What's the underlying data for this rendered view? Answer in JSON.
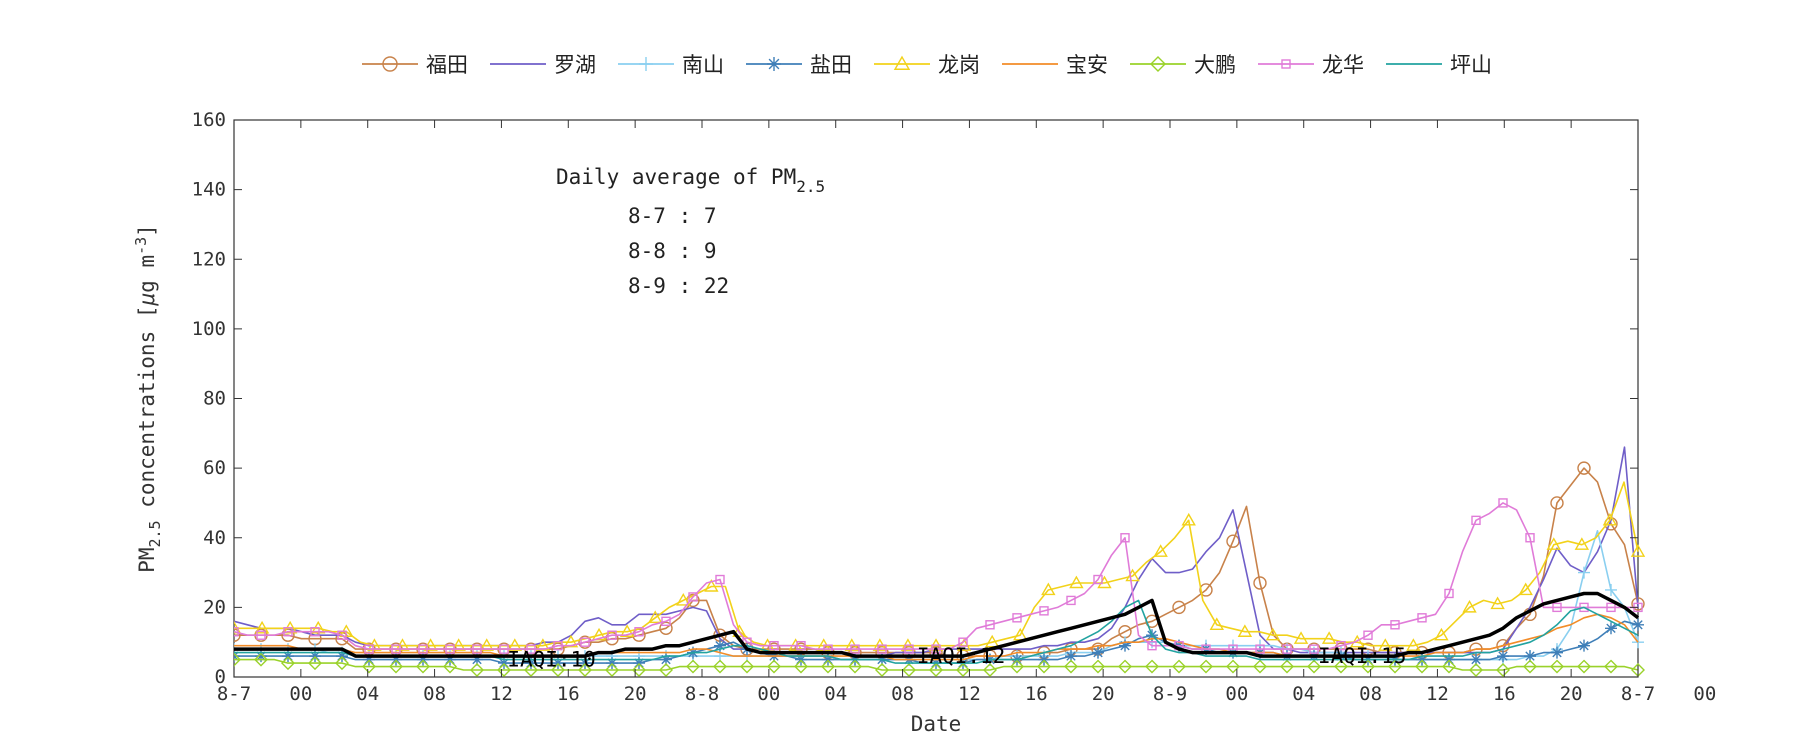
{
  "chart_data": {
    "type": "line",
    "xlabel": "Date",
    "ylabel_main": "PM",
    "ylabel_sub": "2.5",
    "ylabel_rest": " concentrations [",
    "ylabel_mu": "μ",
    "ylabel_unit": "g m",
    "ylabel_exp": "-3",
    "ylabel_close": "]",
    "ylim": [
      0,
      160
    ],
    "yticks": [
      0,
      20,
      40,
      60,
      80,
      100,
      120,
      140,
      160
    ],
    "xlim": [
      0,
      84
    ],
    "grid": false,
    "legend_position": "top",
    "xticks": [
      {
        "x": 0,
        "label": "8-7"
      },
      {
        "x": 4,
        "label": "00"
      },
      {
        "x": 8,
        "label": "04"
      },
      {
        "x": 12,
        "label": "08"
      },
      {
        "x": 16,
        "label": "12"
      },
      {
        "x": 20,
        "label": "16"
      },
      {
        "x": 24,
        "label": "20"
      },
      {
        "x": 28,
        "label": "8-8"
      },
      {
        "x": 32,
        "label": "00"
      },
      {
        "x": 36,
        "label": "04"
      },
      {
        "x": 40,
        "label": "08"
      },
      {
        "x": 44,
        "label": "12"
      },
      {
        "x": 48,
        "label": "16"
      },
      {
        "x": 52,
        "label": "20"
      },
      {
        "x": 56,
        "label": "8-9"
      },
      {
        "x": 60,
        "label": "00"
      },
      {
        "x": 64,
        "label": "04"
      },
      {
        "x": 68,
        "label": "08"
      },
      {
        "x": 72,
        "label": "12"
      },
      {
        "x": 76,
        "label": "16"
      },
      {
        "x": 80,
        "label": "20"
      },
      {
        "x": 84,
        "label": "8-7"
      },
      {
        "x": 88,
        "label": "00"
      }
    ],
    "annotation": {
      "title_main": "Daily average of PM",
      "title_sub": "2.5",
      "lines": [
        "8-7 : 7",
        "8-8 : 9",
        "8-9 : 22"
      ]
    },
    "iaqi_labels": [
      {
        "x": 19,
        "y": 5,
        "text": "IAQI:10"
      },
      {
        "x": 43.5,
        "y": 6,
        "text": "IAQI:12"
      },
      {
        "x": 67.5,
        "y": 6,
        "text": "IAQI:15"
      }
    ],
    "series": [
      {
        "name": "福田",
        "color": "#C8824A",
        "marker": "circle",
        "marker_every": 1,
        "x0": 0,
        "dx": 1,
        "values": [
          12,
          12,
          12,
          12,
          12,
          11,
          11,
          11,
          11,
          8,
          8,
          8,
          8,
          8,
          8,
          8,
          8,
          8,
          8,
          8,
          8,
          8,
          8,
          8,
          8,
          9,
          10,
          10,
          11,
          11,
          12,
          13,
          14,
          17,
          22,
          22,
          12,
          9,
          8,
          8,
          8,
          8,
          8,
          8,
          7,
          7,
          7,
          7,
          7,
          7,
          7,
          7,
          7,
          6,
          6,
          6,
          6,
          6,
          6,
          6,
          7,
          7,
          8,
          8,
          8,
          11,
          13,
          15,
          16,
          18,
          20,
          22,
          25,
          30,
          39,
          49,
          27,
          12,
          8,
          8,
          8,
          8,
          8,
          8,
          8,
          7,
          7,
          7,
          7,
          7,
          7,
          7,
          8,
          8,
          9,
          14,
          18,
          29,
          50,
          55,
          60,
          56,
          44,
          38,
          21
        ]
      },
      {
        "name": "罗湖",
        "color": "#6F5EC8",
        "marker": "none",
        "x0": 0,
        "dx": 1,
        "values": [
          16,
          15,
          14,
          14,
          14,
          13,
          12,
          12,
          12,
          10,
          9,
          9,
          9,
          9,
          9,
          9,
          9,
          9,
          9,
          9,
          9,
          9,
          9,
          10,
          10,
          12,
          16,
          17,
          15,
          15,
          18,
          18,
          18,
          19,
          20,
          19,
          11,
          8,
          8,
          7,
          7,
          7,
          7,
          7,
          7,
          7,
          6,
          6,
          6,
          7,
          7,
          7,
          8,
          8,
          8,
          8,
          8,
          8,
          8,
          8,
          9,
          9,
          10,
          10,
          11,
          14,
          20,
          28,
          34,
          30,
          30,
          31,
          36,
          40,
          48,
          30,
          12,
          8,
          8,
          7,
          7,
          7,
          7,
          7,
          7,
          7,
          7,
          7,
          7,
          7,
          7,
          7,
          7,
          7,
          8,
          14,
          20,
          28,
          37,
          32,
          30,
          36,
          45,
          66,
          20
        ]
      },
      {
        "name": "南山",
        "color": "#8ACFF0",
        "marker": "plus",
        "x0": 0,
        "dx": 1,
        "values": [
          8,
          8,
          8,
          8,
          8,
          8,
          8,
          7,
          7,
          6,
          6,
          6,
          6,
          6,
          6,
          6,
          6,
          6,
          6,
          6,
          6,
          6,
          6,
          6,
          6,
          6,
          6,
          6,
          6,
          6,
          6,
          6,
          6,
          6,
          6,
          6,
          6,
          6,
          6,
          6,
          6,
          6,
          6,
          6,
          6,
          5,
          5,
          5,
          5,
          5,
          5,
          5,
          5,
          5,
          5,
          5,
          5,
          6,
          6,
          6,
          6,
          6,
          7,
          7,
          7,
          9,
          10,
          10,
          10,
          10,
          9,
          9,
          9,
          9,
          9,
          9,
          9,
          9,
          8,
          8,
          7,
          7,
          7,
          6,
          6,
          6,
          5,
          5,
          5,
          5,
          5,
          5,
          5,
          5,
          5,
          5,
          6,
          6,
          8,
          14,
          30,
          42,
          25,
          20,
          10
        ]
      },
      {
        "name": "盐田",
        "color": "#3F7FB8",
        "marker": "star",
        "x0": 0,
        "dx": 1,
        "values": [
          6,
          6,
          6,
          6,
          6,
          6,
          6,
          6,
          6,
          5,
          5,
          5,
          5,
          5,
          5,
          5,
          5,
          5,
          5,
          5,
          4,
          4,
          4,
          4,
          4,
          4,
          4,
          4,
          4,
          4,
          4,
          5,
          5,
          6,
          7,
          8,
          9,
          10,
          8,
          7,
          6,
          6,
          5,
          5,
          5,
          5,
          5,
          5,
          5,
          5,
          5,
          4,
          4,
          4,
          4,
          5,
          5,
          5,
          5,
          5,
          5,
          5,
          6,
          6,
          7,
          8,
          9,
          11,
          12,
          10,
          9,
          8,
          8,
          7,
          7,
          7,
          7,
          7,
          6,
          6,
          6,
          6,
          6,
          5,
          5,
          5,
          5,
          5,
          5,
          5,
          5,
          5,
          5,
          5,
          6,
          6,
          6,
          7,
          7,
          8,
          9,
          11,
          14,
          16,
          15
        ]
      },
      {
        "name": "龙岗",
        "color": "#F2D21A",
        "marker": "triangle",
        "x0": 0,
        "dx": 1,
        "values": [
          14,
          14,
          14,
          14,
          14,
          14,
          14,
          13,
          13,
          10,
          9,
          9,
          9,
          9,
          9,
          9,
          9,
          9,
          9,
          9,
          9,
          9,
          9,
          10,
          10,
          11,
          12,
          13,
          13,
          14,
          17,
          20,
          22,
          24,
          26,
          26,
          13,
          10,
          9,
          9,
          9,
          9,
          9,
          9,
          9,
          9,
          9,
          9,
          9,
          9,
          9,
          9,
          9,
          9,
          10,
          11,
          12,
          20,
          25,
          26,
          27,
          27,
          27,
          28,
          29,
          33,
          36,
          40,
          45,
          22,
          15,
          14,
          13,
          13,
          12,
          12,
          11,
          11,
          11,
          10,
          10,
          9,
          9,
          9,
          9,
          10,
          12,
          16,
          20,
          22,
          21,
          22,
          25,
          30,
          38,
          39,
          38,
          40,
          45,
          56,
          36
        ]
      },
      {
        "name": "宝安",
        "color": "#F28C28",
        "marker": "none",
        "x0": 0,
        "dx": 1,
        "values": [
          9,
          9,
          9,
          9,
          9,
          8,
          8,
          8,
          8,
          7,
          7,
          7,
          7,
          7,
          7,
          7,
          7,
          7,
          7,
          7,
          6,
          6,
          6,
          6,
          6,
          6,
          6,
          7,
          7,
          7,
          7,
          7,
          7,
          7,
          8,
          8,
          7,
          6,
          6,
          6,
          6,
          6,
          6,
          6,
          6,
          6,
          6,
          6,
          6,
          5,
          5,
          5,
          5,
          5,
          5,
          6,
          6,
          6,
          7,
          7,
          7,
          8,
          8,
          8,
          9,
          9,
          10,
          10,
          11,
          11,
          10,
          9,
          8,
          8,
          7,
          7,
          7,
          7,
          6,
          6,
          6,
          6,
          6,
          6,
          6,
          6,
          6,
          6,
          6,
          7,
          7,
          7,
          8,
          8,
          9,
          10,
          11,
          12,
          14,
          15,
          17,
          18,
          17,
          15,
          10
        ]
      },
      {
        "name": "大鹏",
        "color": "#9AD22A",
        "marker": "diamond",
        "x0": 0,
        "dx": 1,
        "values": [
          5,
          5,
          5,
          5,
          4,
          4,
          4,
          4,
          4,
          3,
          3,
          3,
          3,
          3,
          3,
          3,
          3,
          2,
          2,
          2,
          2,
          2,
          2,
          2,
          2,
          2,
          2,
          2,
          2,
          2,
          2,
          2,
          2,
          3,
          3,
          3,
          3,
          3,
          3,
          3,
          3,
          3,
          3,
          3,
          3,
          3,
          3,
          3,
          2,
          2,
          2,
          2,
          2,
          2,
          2,
          2,
          2,
          3,
          3,
          3,
          3,
          3,
          3,
          3,
          3,
          3,
          3,
          3,
          3,
          3,
          3,
          3,
          3,
          3,
          3,
          3,
          3,
          3,
          3,
          3,
          3,
          3,
          3,
          3,
          3,
          3,
          3,
          3,
          3,
          3,
          3,
          2,
          2,
          2,
          2,
          3,
          3,
          3,
          3,
          3,
          3,
          3,
          3,
          3,
          2
        ]
      },
      {
        "name": "龙华",
        "color": "#E07BD8",
        "marker": "square",
        "marker_every": 1,
        "x0": 0,
        "dx": 1,
        "values": [
          13,
          12,
          12,
          12,
          13,
          13,
          13,
          13,
          12,
          9,
          8,
          8,
          8,
          8,
          8,
          8,
          8,
          8,
          8,
          8,
          8,
          8,
          8,
          8,
          9,
          9,
          10,
          11,
          12,
          12,
          13,
          15,
          16,
          18,
          23,
          27,
          28,
          15,
          10,
          9,
          9,
          9,
          9,
          8,
          8,
          8,
          8,
          8,
          8,
          8,
          8,
          8,
          8,
          8,
          10,
          14,
          15,
          16,
          17,
          18,
          19,
          20,
          22,
          24,
          28,
          35,
          40,
          12,
          9,
          9,
          9,
          8,
          8,
          8,
          8,
          8,
          8,
          8,
          8,
          8,
          8,
          8,
          9,
          10,
          12,
          15,
          15,
          16,
          17,
          18,
          24,
          36,
          45,
          47,
          50,
          48,
          40,
          20,
          20,
          20,
          20,
          20,
          20,
          20,
          20
        ]
      },
      {
        "name": "坪山",
        "color": "#22A3A0",
        "marker": "none",
        "x0": 0,
        "dx": 1,
        "values": [
          7,
          7,
          7,
          7,
          7,
          7,
          7,
          7,
          7,
          6,
          6,
          6,
          6,
          6,
          6,
          6,
          6,
          6,
          6,
          6,
          5,
          5,
          5,
          5,
          5,
          5,
          5,
          5,
          5,
          5,
          5,
          5,
          6,
          6,
          7,
          7,
          8,
          9,
          9,
          8,
          7,
          6,
          6,
          6,
          6,
          5,
          5,
          5,
          5,
          4,
          4,
          4,
          4,
          4,
          4,
          4,
          5,
          5,
          5,
          6,
          7,
          8,
          9,
          11,
          13,
          16,
          20,
          22,
          12,
          8,
          7,
          7,
          6,
          6,
          6,
          6,
          5,
          5,
          5,
          5,
          5,
          5,
          5,
          5,
          5,
          5,
          5,
          5,
          6,
          6,
          6,
          6,
          7,
          7,
          8,
          9,
          10,
          12,
          15,
          19,
          20,
          18,
          16,
          14,
          12
        ]
      },
      {
        "name": "",
        "color": "#000000",
        "marker": "none",
        "thick": true,
        "x0": 0,
        "dx": 1,
        "values": [
          8,
          8,
          8,
          8,
          8,
          8,
          8,
          8,
          8,
          6,
          6,
          6,
          6,
          6,
          6,
          6,
          6,
          6,
          6,
          6,
          6,
          6,
          6,
          6,
          6,
          6,
          6,
          7,
          7,
          8,
          8,
          8,
          9,
          9,
          10,
          11,
          12,
          13,
          8,
          7,
          7,
          7,
          7,
          7,
          7,
          7,
          6,
          6,
          6,
          6,
          6,
          6,
          6,
          6,
          6,
          7,
          8,
          9,
          10,
          11,
          12,
          13,
          14,
          15,
          16,
          17,
          18,
          20,
          22,
          10,
          8,
          7,
          7,
          7,
          7,
          7,
          6,
          6,
          6,
          6,
          6,
          6,
          6,
          6,
          6,
          6,
          6,
          7,
          7,
          8,
          9,
          10,
          11,
          12,
          14,
          17,
          19,
          21,
          22,
          23,
          24,
          24,
          22,
          20,
          17
        ]
      }
    ]
  },
  "legend": [
    {
      "label": "福田",
      "color": "#C8824A",
      "marker": "circle"
    },
    {
      "label": "罗湖",
      "color": "#6F5EC8",
      "marker": "none"
    },
    {
      "label": "南山",
      "color": "#8ACFF0",
      "marker": "plus"
    },
    {
      "label": "盐田",
      "color": "#3F7FB8",
      "marker": "star"
    },
    {
      "label": "龙岗",
      "color": "#F2D21A",
      "marker": "triangle"
    },
    {
      "label": "宝安",
      "color": "#F28C28",
      "marker": "none"
    },
    {
      "label": "大鹏",
      "color": "#9AD22A",
      "marker": "diamond"
    },
    {
      "label": "龙华",
      "color": "#E07BD8",
      "marker": "square"
    },
    {
      "label": "坪山",
      "color": "#22A3A0",
      "marker": "none"
    }
  ]
}
